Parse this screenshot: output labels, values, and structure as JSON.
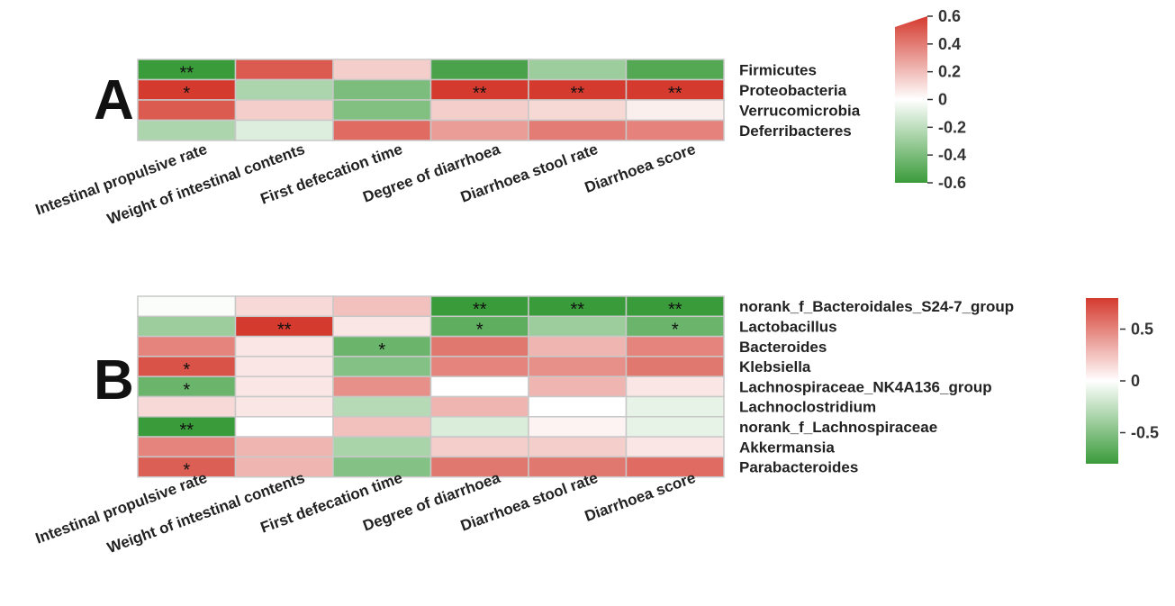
{
  "chart_data": [
    {
      "panel": "A",
      "type": "heatmap",
      "columns": [
        "Intestinal propulsive rate",
        "Weight of intestinal contents",
        "First defecation time",
        "Degree of diarrhoea",
        "Diarrhoea stool rate",
        "Diarrhoea score"
      ],
      "rows": [
        "Firmicutes",
        "Proteobacteria",
        "Verrucomicrobia",
        "Deferribacteres"
      ],
      "values": [
        [
          -0.6,
          0.5,
          0.15,
          -0.55,
          -0.3,
          -0.52
        ],
        [
          0.6,
          -0.25,
          -0.4,
          0.6,
          0.6,
          0.6
        ],
        [
          0.5,
          0.15,
          -0.38,
          0.15,
          0.12,
          0.05
        ],
        [
          -0.25,
          -0.1,
          0.45,
          0.3,
          0.4,
          0.38
        ]
      ],
      "significance": [
        [
          "**",
          "",
          "",
          "",
          "",
          ""
        ],
        [
          "*",
          "",
          "",
          "**",
          "**",
          "**"
        ],
        [
          "",
          "",
          "",
          "",
          "",
          ""
        ],
        [
          "",
          "",
          "",
          "",
          "",
          ""
        ]
      ],
      "color_scale": {
        "min": -0.6,
        "max": 0.6,
        "low_color": "#3a9b3a",
        "mid_color": "#ffffff",
        "high_color": "#d43a2e",
        "ticks": [
          "0.6",
          "0.4",
          "0.2",
          "0",
          "-0.2",
          "-0.4",
          "-0.6"
        ]
      }
    },
    {
      "panel": "B",
      "type": "heatmap",
      "columns": [
        "Intestinal propulsive rate",
        "Weight of intestinal contents",
        "First defecation time",
        "Degree of diarrhoea",
        "Diarrhoea stool rate",
        "Diarrhoea score"
      ],
      "rows": [
        "norank_f_Bacteroidales_S24-7_group",
        "Lactobacillus",
        "Bacteroides",
        "Klebsiella",
        "Lachnospiraceae_NK4A136_group",
        "Lachnoclostridium",
        "norank_f_Lachnospiraceae",
        "Akkermansia",
        "Parabacteroides"
      ],
      "values": [
        [
          -0.02,
          0.15,
          0.25,
          -0.8,
          -0.8,
          -0.8
        ],
        [
          -0.4,
          0.8,
          0.1,
          -0.65,
          -0.4,
          -0.6
        ],
        [
          0.5,
          0.1,
          -0.6,
          0.55,
          0.3,
          0.5
        ],
        [
          0.7,
          0.1,
          -0.5,
          0.5,
          0.45,
          0.55
        ],
        [
          -0.6,
          0.1,
          0.45,
          0.0,
          0.3,
          0.1
        ],
        [
          0.15,
          0.1,
          -0.3,
          0.3,
          0.0,
          -0.1
        ],
        [
          -0.8,
          0.0,
          0.25,
          -0.15,
          0.05,
          -0.1
        ],
        [
          0.5,
          0.3,
          -0.35,
          0.2,
          0.2,
          0.1
        ],
        [
          0.65,
          0.3,
          -0.5,
          0.55,
          0.55,
          0.6
        ]
      ],
      "significance": [
        [
          "",
          "",
          "",
          "**",
          "**",
          "**"
        ],
        [
          "",
          "**",
          "",
          "*",
          "",
          "*"
        ],
        [
          "",
          "",
          "*",
          "",
          "",
          ""
        ],
        [
          "*",
          "",
          "",
          "",
          "",
          ""
        ],
        [
          "*",
          "",
          "",
          "",
          "",
          ""
        ],
        [
          "",
          "",
          "",
          "",
          "",
          ""
        ],
        [
          "**",
          "",
          "",
          "",
          "",
          ""
        ],
        [
          "",
          "",
          "",
          "",
          "",
          ""
        ],
        [
          "*",
          "",
          "",
          "",
          "",
          ""
        ]
      ],
      "color_scale": {
        "min": -0.8,
        "max": 0.8,
        "low_color": "#3a9b3a",
        "mid_color": "#ffffff",
        "high_color": "#d43a2e",
        "ticks": [
          "0.5",
          "0",
          "-0.5"
        ]
      }
    }
  ]
}
